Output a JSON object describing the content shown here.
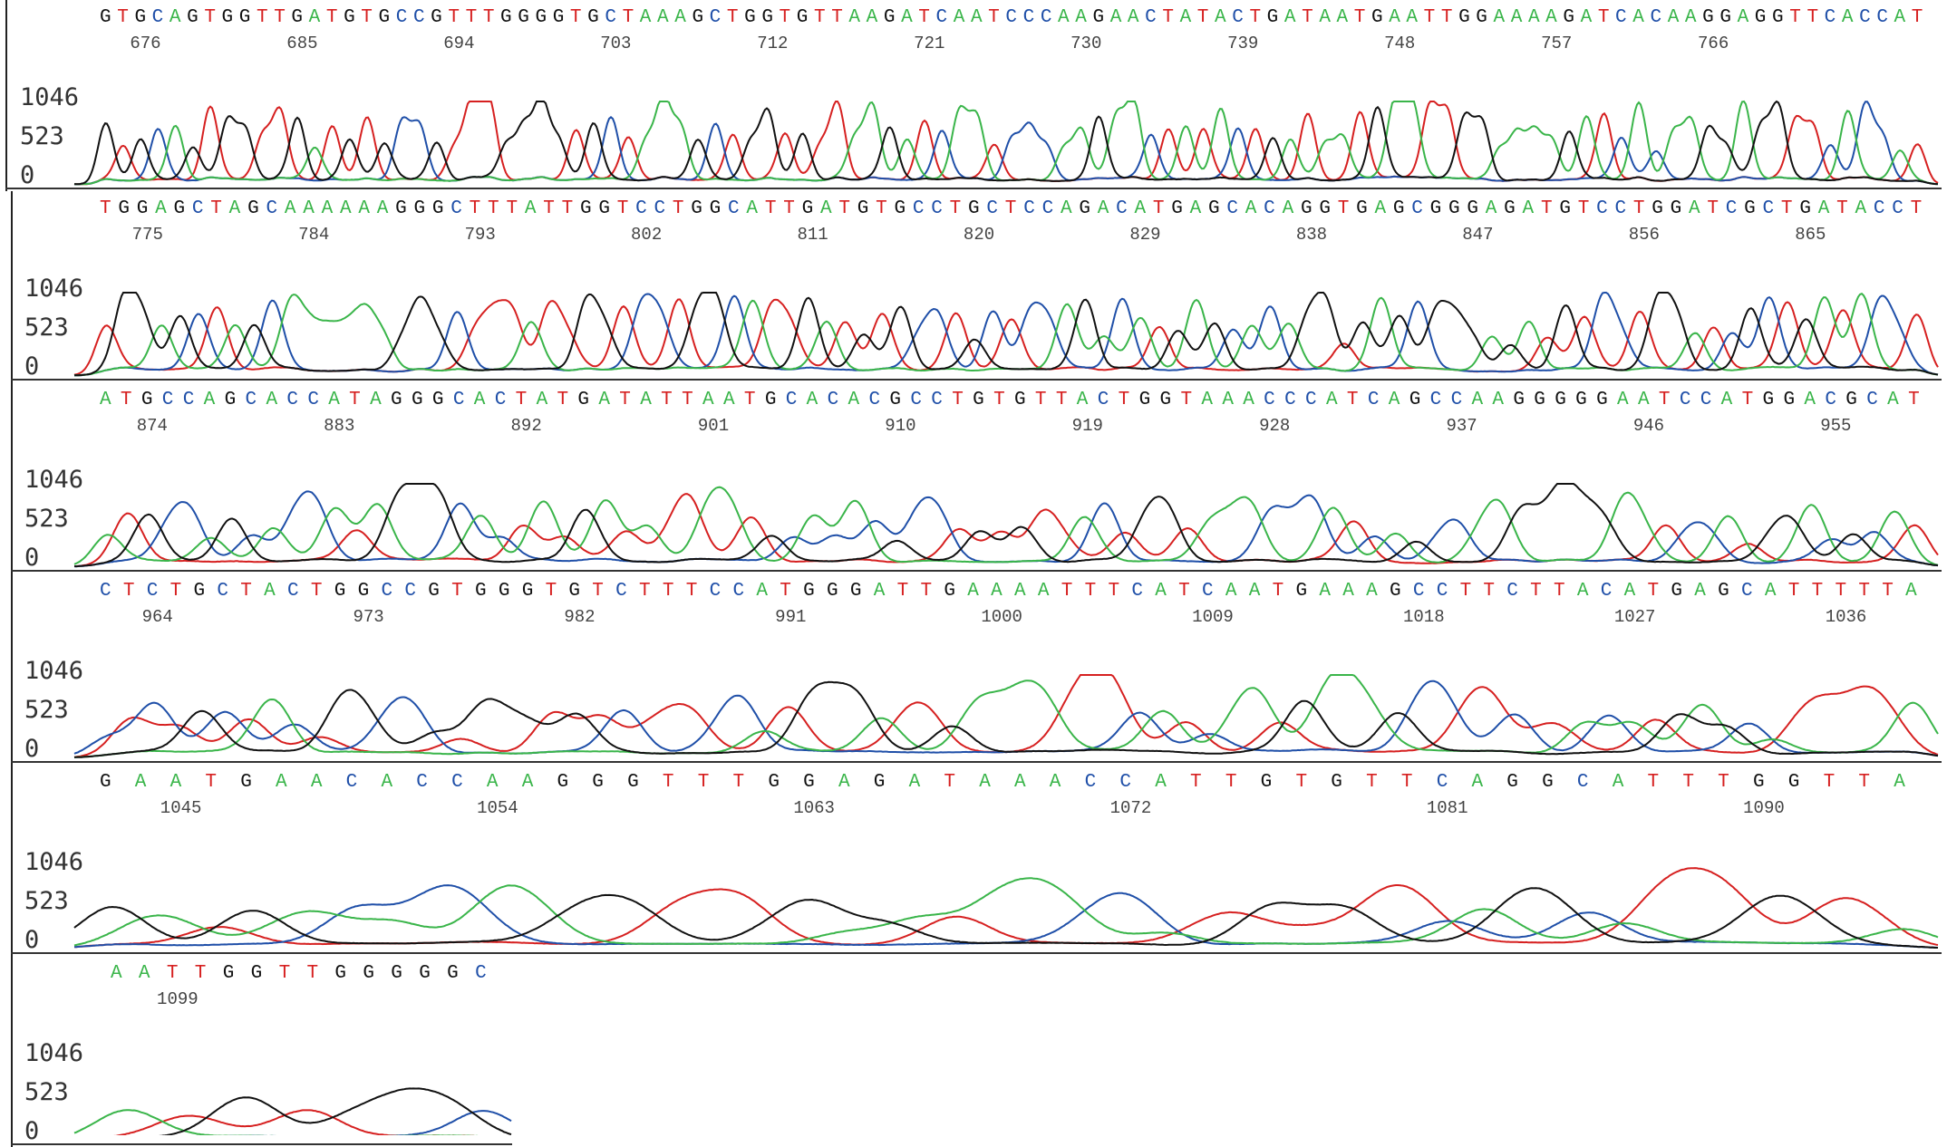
{
  "chart_data": {
    "type": "line",
    "colors": {
      "A": "#3ab54a",
      "C": "#1f4fa8",
      "G": "#111111",
      "T": "#d62020"
    },
    "ytick_labels": [
      "1046",
      "523",
      "0"
    ],
    "ylim": [
      0,
      1046
    ],
    "grid": false,
    "legend": "none",
    "panels": [
      {
        "sequence": "GTGCAGTGGTTGATGTGCCGTTTGGGGTGCTAAAGCTGGTGTTAAGATCAATCCCAAGAACTATACTGATAATGAATTGGAAAAGATCACAAGGAGGTTCACCAT",
        "position_labels": [
          "676",
          "685",
          "694",
          "703",
          "712",
          "721",
          "730",
          "739",
          "748",
          "757",
          "766"
        ],
        "label_spacing": 9,
        "peak_height_range": [
          400,
          1046
        ]
      },
      {
        "sequence": "TGGAGCTAGCAAAAAAGGGCTTTATTGGTCCTGGCATTGATGTGCCTGCTCCAGACATGAGCACAGGTGAGCGGGAGATGTCCTGGATCGCTGATACCT",
        "position_labels": [
          "775",
          "784",
          "793",
          "802",
          "811",
          "820",
          "829",
          "838",
          "847",
          "856",
          "865"
        ],
        "label_spacing": 9,
        "peak_height_range": [
          350,
          1000
        ]
      },
      {
        "sequence": "ATGCCAGCACCATAGGGCACTATGATATTAATGCACACGCCTGTGTTACTGGTAAACCCATCAGCCAAGGGGGAATCCATGGACGCAT",
        "position_labels": [
          "874",
          "883",
          "892",
          "901",
          "910",
          "919",
          "928",
          "937",
          "946",
          "955"
        ],
        "label_spacing": 9,
        "peak_height_range": [
          250,
          800
        ]
      },
      {
        "sequence": "CTCTGCTACTGGCCGTGGGTGTCTTTCCATGGGATTGAAAATTTCATCAATGAAAGCCTTCTTACATGAGCATTTTTA",
        "position_labels": [
          "964",
          "973",
          "982",
          "991",
          "1000",
          "1009",
          "1018",
          "1027",
          "1036"
        ],
        "label_spacing": 9,
        "peak_height_range": [
          200,
          700
        ]
      },
      {
        "sequence": "GAATGAACACCAAGGGTTTGGAGATAAACCATTGTGTTCAGGCATTTGGTTA",
        "position_labels": [
          "1045",
          "1054",
          "1063",
          "1072",
          "1081",
          "1090"
        ],
        "label_spacing": 9,
        "peak_height_range": [
          150,
          550
        ]
      },
      {
        "sequence": "AATTGGTTGGGGGC",
        "position_labels": [
          "1099"
        ],
        "label_spacing": 9,
        "peak_height_range": [
          100,
          350
        ]
      }
    ]
  }
}
